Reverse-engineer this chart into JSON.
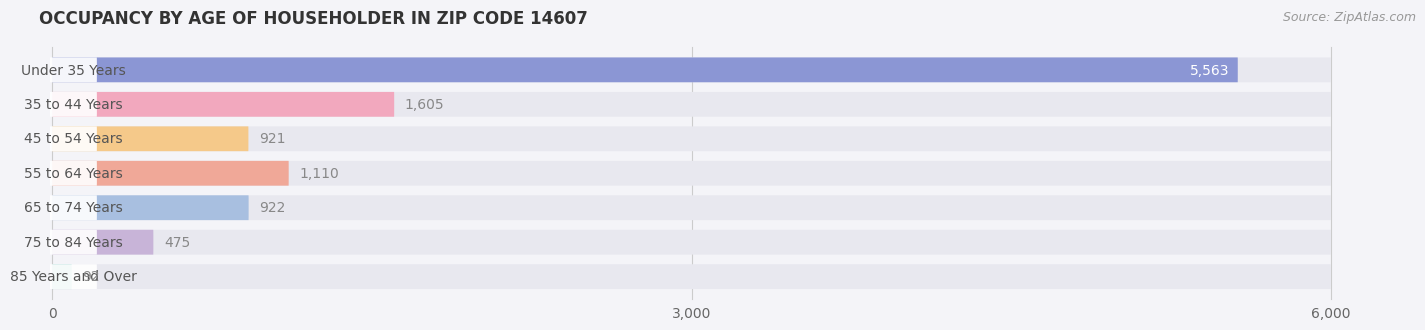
{
  "title": "OCCUPANCY BY AGE OF HOUSEHOLDER IN ZIP CODE 14607",
  "source": "Source: ZipAtlas.com",
  "categories": [
    "Under 35 Years",
    "35 to 44 Years",
    "45 to 54 Years",
    "55 to 64 Years",
    "65 to 74 Years",
    "75 to 84 Years",
    "85 Years and Over"
  ],
  "values": [
    5563,
    1605,
    921,
    1110,
    922,
    475,
    92
  ],
  "bar_colors": [
    "#8b96d4",
    "#f2a8be",
    "#f5c98a",
    "#f0a898",
    "#a8bfe0",
    "#c8b4d8",
    "#7ec8c0"
  ],
  "background_color": "#f4f4f8",
  "bar_bg_color": "#e8e8ef",
  "xlim_max": 6300,
  "data_max": 6000,
  "xticks": [
    0,
    3000,
    6000
  ],
  "xtick_labels": [
    "0",
    "3,000",
    "6,000"
  ],
  "title_fontsize": 12,
  "title_color": "#333333",
  "tick_fontsize": 10,
  "source_fontsize": 9,
  "source_color": "#999999",
  "bar_height": 0.72,
  "label_fontsize": 10,
  "value_fontsize": 10,
  "value_color_inside": "#ffffff",
  "value_color_outside": "#888888",
  "label_bg_color": "#ffffff",
  "label_text_color": "#555555"
}
